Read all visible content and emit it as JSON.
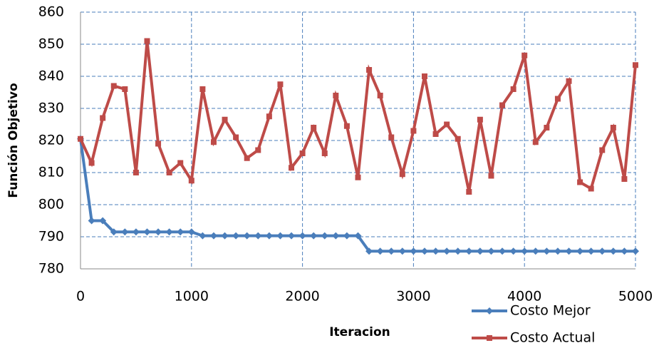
{
  "chart_data": {
    "type": "line",
    "x_label": "Iteracion",
    "y_label": "Función Objetivo",
    "x": [
      0,
      100,
      200,
      300,
      400,
      500,
      600,
      700,
      800,
      900,
      1000,
      1100,
      1200,
      1300,
      1400,
      1500,
      1600,
      1700,
      1800,
      1900,
      2000,
      2100,
      2200,
      2300,
      2400,
      2500,
      2600,
      2700,
      2800,
      2900,
      3000,
      3100,
      3200,
      3300,
      3400,
      3500,
      3600,
      3700,
      3800,
      3900,
      4000,
      4100,
      4200,
      4300,
      4400,
      4500,
      4600,
      4700,
      4800,
      4900,
      5000
    ],
    "series": [
      {
        "name": "Costo Mejor",
        "color": "#4a7ebb",
        "marker": "diamond",
        "values": [
          820.5,
          795,
          795,
          791.5,
          791.5,
          791.5,
          791.5,
          791.5,
          791.5,
          791.5,
          791.5,
          790.3,
          790.3,
          790.3,
          790.3,
          790.3,
          790.3,
          790.3,
          790.3,
          790.3,
          790.3,
          790.3,
          790.3,
          790.3,
          790.3,
          790.3,
          785.5,
          785.5,
          785.5,
          785.5,
          785.5,
          785.5,
          785.5,
          785.5,
          785.5,
          785.5,
          785.5,
          785.5,
          785.5,
          785.5,
          785.5,
          785.5,
          785.5,
          785.5,
          785.5,
          785.5,
          785.5,
          785.5,
          785.5,
          785.5,
          785.5
        ]
      },
      {
        "name": "Costo Actual",
        "color": "#be4b48",
        "marker": "square",
        "values": [
          820.5,
          813,
          827,
          837,
          836,
          810,
          851,
          819,
          810,
          813,
          807.5,
          836,
          819.5,
          826.5,
          821,
          814.5,
          817,
          827.5,
          837.5,
          811.5,
          816,
          824,
          816,
          834,
          824.5,
          808.5,
          842,
          834,
          821,
          809.5,
          823,
          840,
          822,
          825,
          820.5,
          804,
          826.5,
          809,
          831,
          836,
          846.5,
          819.5,
          824,
          833,
          838.5,
          807,
          805,
          817,
          824,
          808,
          843.5
        ]
      }
    ],
    "xlim": [
      0,
      5000
    ],
    "xticks": [
      0,
      1000,
      2000,
      3000,
      4000,
      5000
    ],
    "ylim": [
      780,
      860
    ],
    "yticks": [
      780,
      790,
      800,
      810,
      820,
      830,
      840,
      850,
      860
    ],
    "grid": true,
    "legend": "bottom-right"
  }
}
